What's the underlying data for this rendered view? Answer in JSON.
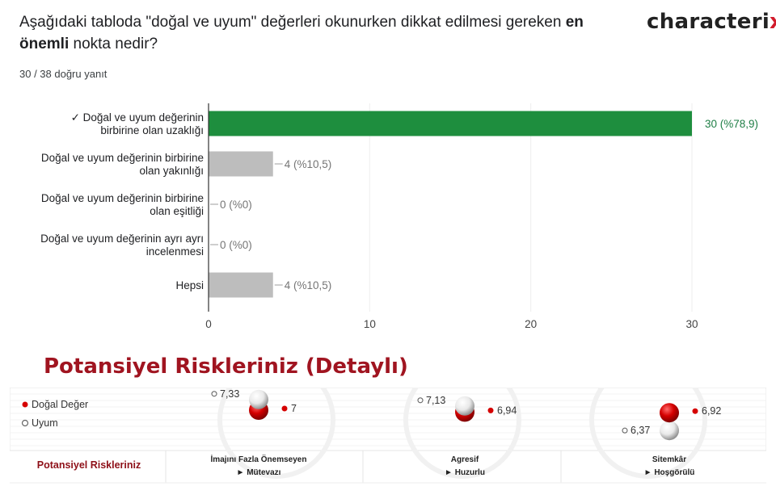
{
  "question": {
    "text_before": "Aşağıdaki tabloda \"doğal ve uyum\" değerleri okunurken dikkat edilmesi gereken ",
    "bold1": "en",
    "line_break_bold": "önemli",
    "text_after": " nokta nedir?"
  },
  "logo": {
    "main": "characteri",
    "x": "x"
  },
  "answers_summary": "30 / 38 doğru yanıt",
  "chart_data": [
    {
      "type": "bar",
      "orientation": "horizontal",
      "categories": [
        [
          "✓ Doğal ve uyum değerinin",
          "birbirine olan uzaklığı"
        ],
        [
          "Doğal ve uyum değerinin birbirine",
          "olan yakınlığı"
        ],
        [
          "Doğal ve uyum değerinin birbirine",
          "olan eşitliği"
        ],
        [
          "Doğal ve uyum değerinin ayrı ayrı",
          "incelenmesi"
        ],
        [
          "Hepsi"
        ]
      ],
      "values": [
        30,
        4,
        0,
        0,
        4
      ],
      "value_labels": [
        "30 (%78,9)",
        "4 (%10,5)",
        "0 (%0)",
        "0 (%0)",
        "4 (%10,5)"
      ],
      "correct_index": 0,
      "xlim": [
        0,
        30
      ],
      "xticks": [
        "0",
        "10",
        "20",
        "30"
      ],
      "colors": {
        "correct": "#1e8e3e",
        "other": "#bdbdbd",
        "correct_label": "#1e7e45",
        "other_label": "#757575"
      }
    },
    {
      "type": "scatter",
      "title": "Potansiyel Riskleriniz (Detaylı)",
      "legend": [
        {
          "name": "Doğal Değer",
          "color": "#d50000"
        },
        {
          "name": "Uyum",
          "color": "#ffffff"
        }
      ],
      "row_label": "Potansiyel Riskleriniz",
      "categories": [
        {
          "title": "İmajını Fazla Önemseyen",
          "subtitle": "► Mütevazı",
          "dogal": 7,
          "uyum": 7.33,
          "dogal_label": "7",
          "uyum_label": "7,33"
        },
        {
          "title": "Agresif",
          "subtitle": "► Huzurlu",
          "dogal": 6.94,
          "uyum": 7.13,
          "dogal_label": "6,94",
          "uyum_label": "7,13"
        },
        {
          "title": "Sitemkâr",
          "subtitle": "► Hoşgörülü",
          "dogal": 6.92,
          "uyum": 6.37,
          "dogal_label": "6,92",
          "uyum_label": "6,37"
        }
      ]
    }
  ]
}
